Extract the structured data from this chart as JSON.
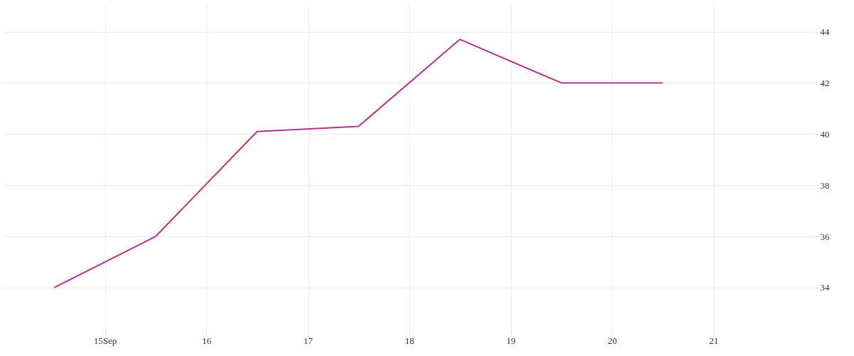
{
  "chart_data": {
    "type": "line",
    "x": [
      14.5,
      15.5,
      16.5,
      17.5,
      18.5,
      19.5,
      20.5
    ],
    "series": [
      {
        "color": "#b5338a",
        "values": [
          34,
          36,
          40.1,
          40.3,
          43.7,
          42,
          42
        ]
      }
    ],
    "xlim": [
      14,
      22
    ],
    "xticks": [
      {
        "value": 15,
        "label": "15Sep"
      },
      16,
      17,
      18,
      19,
      20,
      21
    ],
    "ylim": [
      32.3,
      45.1
    ],
    "yticks": [
      34,
      36,
      38,
      40,
      42,
      44
    ],
    "grid": true,
    "marker": "none",
    "line_style": "solid"
  }
}
